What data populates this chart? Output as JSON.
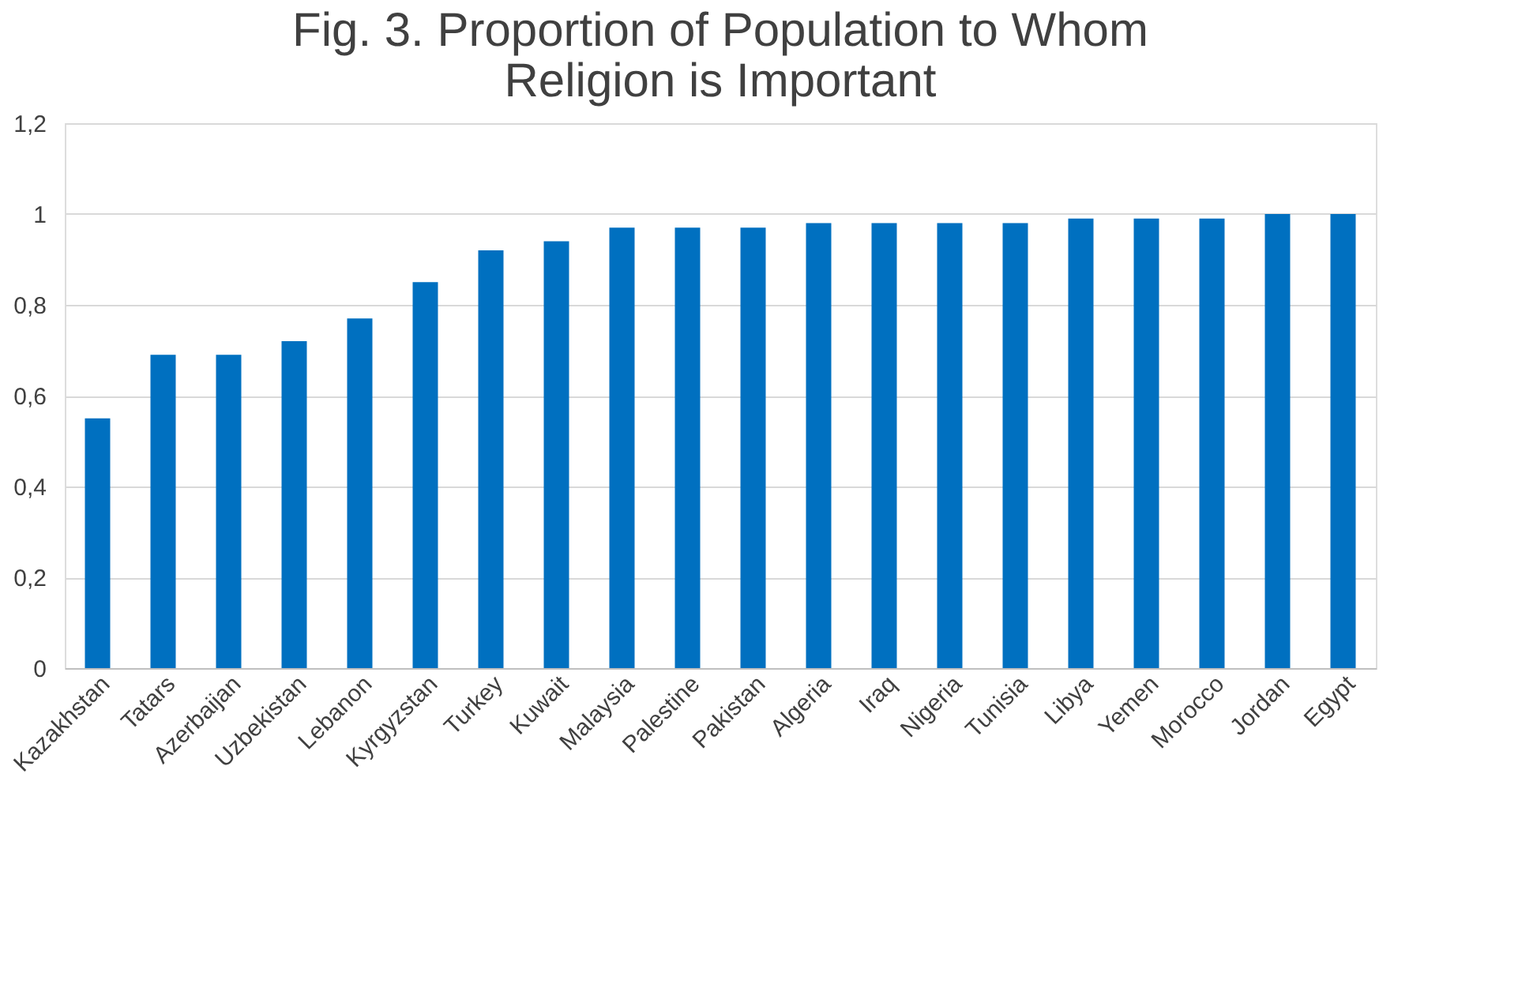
{
  "chart_data": {
    "type": "bar",
    "title": "Fig. 3. Proportion of Population to Whom\nReligion is Important",
    "categories": [
      "Kazakhstan",
      "Tatars",
      "Azerbaijan",
      "Uzbekistan",
      "Lebanon",
      "Kyrgyzstan",
      "Turkey",
      "Kuwait",
      "Malaysia",
      "Palestine",
      "Pakistan",
      "Algeria",
      "Iraq",
      "Nigeria",
      "Tunisia",
      "Libya",
      "Yemen",
      "Morocco",
      "Jordan",
      "Egypt"
    ],
    "values": [
      0.55,
      0.69,
      0.69,
      0.72,
      0.77,
      0.85,
      0.92,
      0.94,
      0.97,
      0.97,
      0.97,
      0.98,
      0.98,
      0.98,
      0.98,
      0.99,
      0.99,
      0.99,
      1.0,
      1.0
    ],
    "color": "#0070c0",
    "ylim": [
      0,
      1.2
    ],
    "yticks": [
      0,
      {
        "value": 0.2,
        "label": "0,2"
      },
      {
        "value": 0.4,
        "label": "0,4"
      },
      {
        "value": 0.6,
        "label": "0,6"
      },
      {
        "value": 0.8,
        "label": "0,8"
      },
      1,
      {
        "value": 1.2,
        "label": "1,2"
      }
    ],
    "grid": "y",
    "legend": false
  }
}
